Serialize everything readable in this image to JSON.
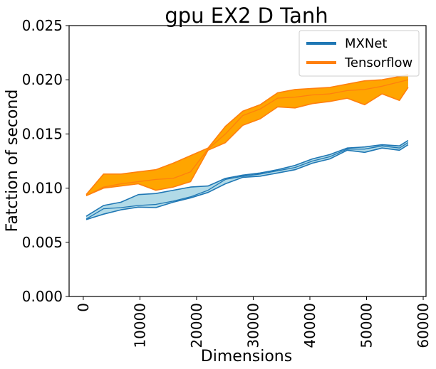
{
  "chart_data": {
    "type": "line",
    "title": "gpu EX2 D Tanh",
    "xlabel": "Dimensions",
    "ylabel": "Fatction of second",
    "xlim": [
      -2500,
      60500
    ],
    "ylim": [
      0,
      0.025
    ],
    "xticks": [
      0,
      10000,
      20000,
      30000,
      40000,
      50000,
      60000
    ],
    "yticks": [
      0.0,
      0.005,
      0.01,
      0.015,
      0.02,
      0.025
    ],
    "ytick_labels": [
      "0.000",
      "0.005",
      "0.010",
      "0.015",
      "0.020",
      "0.025"
    ],
    "legend_position": "top-right",
    "x": [
      512,
      3584,
      6656,
      9728,
      12800,
      15872,
      18944,
      22016,
      25088,
      28160,
      31232,
      34304,
      37376,
      40448,
      43520,
      46592,
      49664,
      52736,
      55808,
      57344
    ],
    "series": [
      {
        "name": "MXNet",
        "color": "#1f77b4",
        "fill": "#add8e6",
        "lower": [
          0.0071,
          0.0076,
          0.008,
          0.00825,
          0.0082,
          0.0087,
          0.0091,
          0.0096,
          0.0104,
          0.011,
          0.0111,
          0.0114,
          0.0117,
          0.0123,
          0.0127,
          0.0135,
          0.0133,
          0.0137,
          0.0135,
          0.014
        ],
        "upper": [
          0.0074,
          0.0084,
          0.0087,
          0.0094,
          0.0095,
          0.0098,
          0.0101,
          0.0102,
          0.0109,
          0.0112,
          0.0114,
          0.0117,
          0.0121,
          0.0127,
          0.0131,
          0.0137,
          0.0138,
          0.014,
          0.0139,
          0.0144
        ],
        "mean": [
          0.00715,
          0.0081,
          0.0082,
          0.0084,
          0.0085,
          0.0088,
          0.0092,
          0.0098,
          0.0108,
          0.0111,
          0.0113,
          0.0116,
          0.0119,
          0.0125,
          0.0129,
          0.0136,
          0.0136,
          0.0139,
          0.0137,
          0.0142
        ]
      },
      {
        "name": "Tensorflow",
        "color": "#ff7f0e",
        "fill": "#ffa500",
        "lower": [
          0.0093,
          0.01,
          0.0102,
          0.0104,
          0.0098,
          0.0101,
          0.0106,
          0.0135,
          0.0142,
          0.0158,
          0.0164,
          0.0175,
          0.0174,
          0.0178,
          0.018,
          0.0183,
          0.0177,
          0.0187,
          0.0181,
          0.0193
        ],
        "upper": [
          0.0094,
          0.0113,
          0.0113,
          0.0115,
          0.0117,
          0.0123,
          0.013,
          0.0137,
          0.0157,
          0.0171,
          0.0177,
          0.0188,
          0.0191,
          0.0192,
          0.0193,
          0.0196,
          0.0199,
          0.02,
          0.0203,
          0.0205
        ],
        "mean": [
          0.0093,
          0.0101,
          0.0104,
          0.0106,
          0.0108,
          0.0109,
          0.0115,
          0.0136,
          0.015,
          0.0167,
          0.0173,
          0.0183,
          0.0184,
          0.0186,
          0.0187,
          0.019,
          0.0191,
          0.0194,
          0.0198,
          0.02
        ]
      }
    ]
  }
}
